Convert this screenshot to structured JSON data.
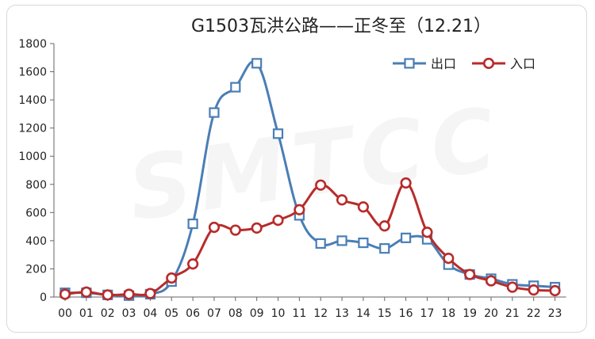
{
  "watermark": "SMTCC",
  "chart_data": {
    "type": "line",
    "title": "G1503瓦洪公路——正冬至（12.21）",
    "xlabel": "",
    "ylabel": "",
    "categories": [
      "00",
      "01",
      "02",
      "03",
      "04",
      "05",
      "06",
      "07",
      "08",
      "09",
      "10",
      "11",
      "12",
      "13",
      "14",
      "15",
      "16",
      "17",
      "18",
      "19",
      "20",
      "21",
      "22",
      "23"
    ],
    "ylim": [
      0,
      1800
    ],
    "yticks": [
      0,
      200,
      400,
      600,
      800,
      1000,
      1200,
      1400,
      1600,
      1800
    ],
    "grid": false,
    "legend_position": "top-right",
    "series": [
      {
        "name": "出口",
        "color": "#4a7eb5",
        "marker": "square",
        "values": [
          30,
          30,
          15,
          10,
          20,
          110,
          520,
          1310,
          1490,
          1660,
          1160,
          580,
          380,
          400,
          385,
          345,
          420,
          410,
          230,
          160,
          130,
          90,
          80,
          70
        ]
      },
      {
        "name": "入口",
        "color": "#b82b2b",
        "marker": "circle",
        "values": [
          20,
          35,
          15,
          20,
          25,
          135,
          235,
          495,
          475,
          490,
          545,
          620,
          795,
          690,
          640,
          505,
          810,
          460,
          275,
          160,
          115,
          70,
          50,
          45
        ]
      }
    ]
  }
}
